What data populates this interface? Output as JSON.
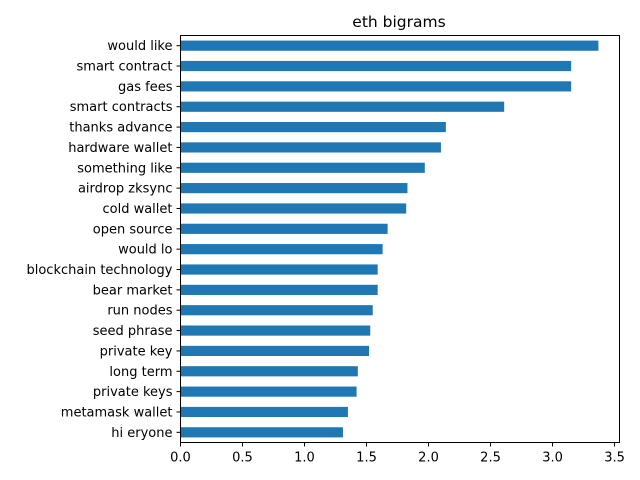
{
  "chart_data": {
    "type": "bar",
    "orientation": "horizontal",
    "title": "eth bigrams",
    "xlabel": "",
    "ylabel": "",
    "categories": [
      "would like",
      "smart contract",
      "gas fees",
      "smart contracts",
      "thanks advance",
      "hardware wallet",
      "something like",
      "airdrop zksync",
      "cold wallet",
      "open source",
      "would lo",
      "blockchain technology",
      "bear market",
      "run nodes",
      "seed phrase",
      "private key",
      "long term",
      "private keys",
      "metamask wallet",
      "hi eryone"
    ],
    "values": [
      3.37,
      3.15,
      3.15,
      2.61,
      2.14,
      2.1,
      1.97,
      1.83,
      1.82,
      1.67,
      1.63,
      1.59,
      1.59,
      1.55,
      1.53,
      1.52,
      1.43,
      1.42,
      1.35,
      1.31
    ],
    "xlim": [
      0,
      3.54
    ],
    "xticks": [
      "0.0",
      "0.5",
      "1.0",
      "1.5",
      "2.0",
      "2.5",
      "3.0",
      "3.5"
    ],
    "xtick_values": [
      0,
      0.5,
      1.0,
      1.5,
      2.0,
      2.5,
      3.0,
      3.5
    ],
    "grid": false,
    "bar_color": "#1f77b4"
  }
}
